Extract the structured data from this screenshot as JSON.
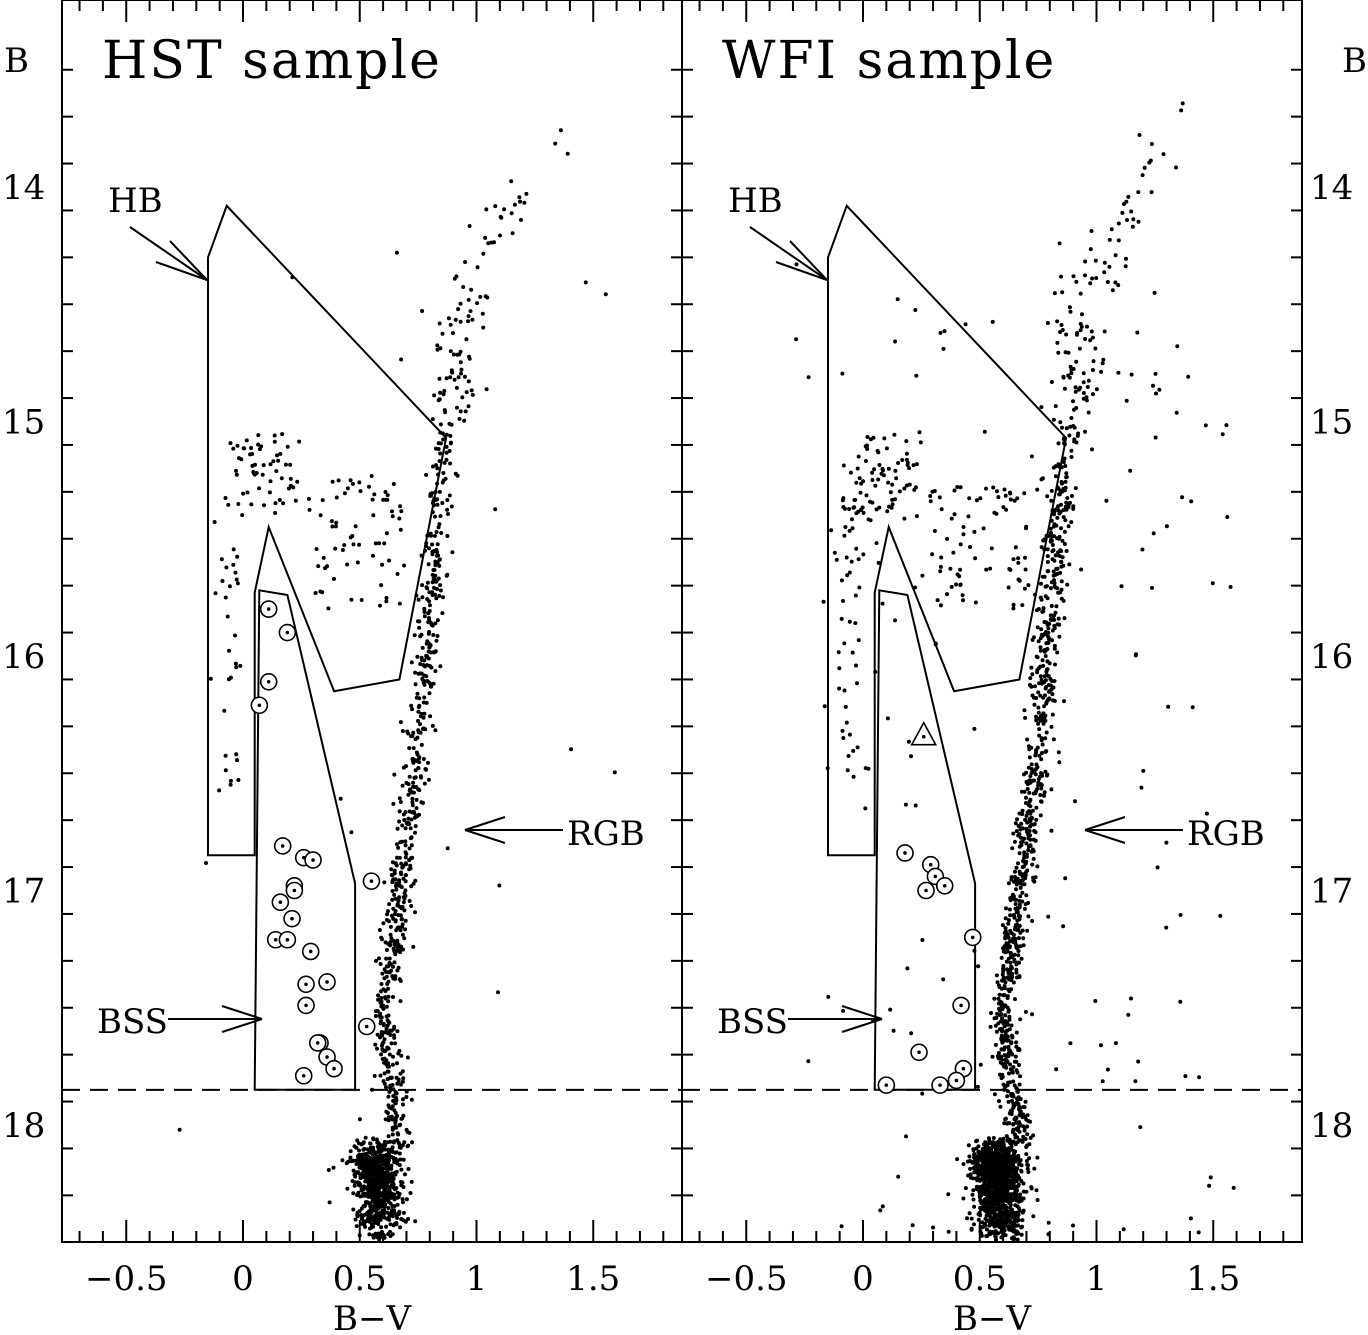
{
  "chart_data": [
    {
      "type": "scatter",
      "title": "HST sample",
      "xlabel": "B−V",
      "ylabel": "B",
      "xlim": [
        -0.8,
        1.9
      ],
      "ylim": [
        18.55,
        13.45
      ],
      "x_ticks": [
        -0.5,
        0,
        0.5,
        1,
        1.5
      ],
      "x_tick_labels": [
        "−0.5",
        "0",
        "0.5",
        "1",
        "1.5"
      ],
      "y_ticks": [
        14,
        15,
        16,
        17,
        18
      ],
      "y_tick_labels": [
        "14",
        "15",
        "16",
        "17",
        "18"
      ],
      "annotations": [
        "HB",
        "RGB",
        "BSS"
      ],
      "dashed_line_B": 17.85,
      "hb_region": [
        [
          -0.15,
          16.85
        ],
        [
          -0.15,
          14.3
        ],
        [
          -0.07,
          14.08
        ],
        [
          0.87,
          15.07
        ],
        [
          0.67,
          16.1
        ],
        [
          0.39,
          16.15
        ],
        [
          0.11,
          15.45
        ],
        [
          0.05,
          15.73
        ],
        [
          0.05,
          16.85
        ]
      ],
      "bss_region": [
        [
          0.07,
          15.72
        ],
        [
          0.19,
          15.74
        ],
        [
          0.48,
          16.97
        ],
        [
          0.48,
          17.85
        ],
        [
          0.05,
          17.85
        ]
      ],
      "bss_stars": {
        "x": [
          0.11,
          0.19,
          0.11,
          0.07,
          0.17,
          0.26,
          0.3,
          0.22,
          0.22,
          0.16,
          0.21,
          0.14,
          0.19,
          0.29,
          0.36,
          0.27,
          0.27,
          0.33,
          0.32,
          0.36,
          0.39,
          0.55,
          0.26,
          0.53
        ],
        "y": [
          15.8,
          15.9,
          16.11,
          16.21,
          16.81,
          16.86,
          16.87,
          16.98,
          17.0,
          17.05,
          17.12,
          17.21,
          17.21,
          17.26,
          17.39,
          17.4,
          17.49,
          17.65,
          17.65,
          17.71,
          17.76,
          16.96,
          17.79,
          17.58
        ]
      },
      "star_counts_approx": {
        "hb": 160,
        "rgb": 760,
        "turnoff": 800,
        "field": 20
      }
    },
    {
      "type": "scatter",
      "title": "WFI sample",
      "xlabel": "B−V",
      "ylabel": "B",
      "xlim": [
        -0.8,
        1.9
      ],
      "ylim": [
        18.55,
        13.45
      ],
      "x_ticks": [
        -0.5,
        0,
        0.5,
        1,
        1.5
      ],
      "x_tick_labels": [
        "−0.5",
        "0",
        "0.5",
        "1",
        "1.5"
      ],
      "y_ticks": [
        14,
        15,
        16,
        17,
        18
      ],
      "y_tick_labels": [
        "14",
        "15",
        "16",
        "17",
        "18"
      ],
      "annotations": [
        "HB",
        "RGB",
        "BSS"
      ],
      "dashed_line_B": 17.85,
      "hb_region": [
        [
          -0.15,
          16.85
        ],
        [
          -0.15,
          14.3
        ],
        [
          -0.07,
          14.08
        ],
        [
          0.87,
          15.07
        ],
        [
          0.67,
          16.1
        ],
        [
          0.39,
          16.15
        ],
        [
          0.11,
          15.45
        ],
        [
          0.05,
          15.73
        ],
        [
          0.05,
          16.85
        ]
      ],
      "bss_region": [
        [
          0.07,
          15.72
        ],
        [
          0.19,
          15.74
        ],
        [
          0.48,
          16.97
        ],
        [
          0.48,
          17.85
        ],
        [
          0.05,
          17.85
        ]
      ],
      "bss_stars": {
        "x": [
          0.18,
          0.29,
          0.31,
          0.35,
          0.27,
          0.47,
          0.42,
          0.24,
          0.43,
          0.4,
          0.33,
          0.1
        ],
        "y": [
          16.84,
          16.89,
          16.94,
          16.98,
          17.0,
          17.2,
          17.49,
          17.69,
          17.76,
          17.81,
          17.83,
          17.83
        ]
      },
      "triangle_star": {
        "x": 0.26,
        "y": 16.34
      },
      "star_counts_approx": {
        "hb": 200,
        "rgb": 1000,
        "turnoff": 1300,
        "field": 160
      }
    }
  ]
}
